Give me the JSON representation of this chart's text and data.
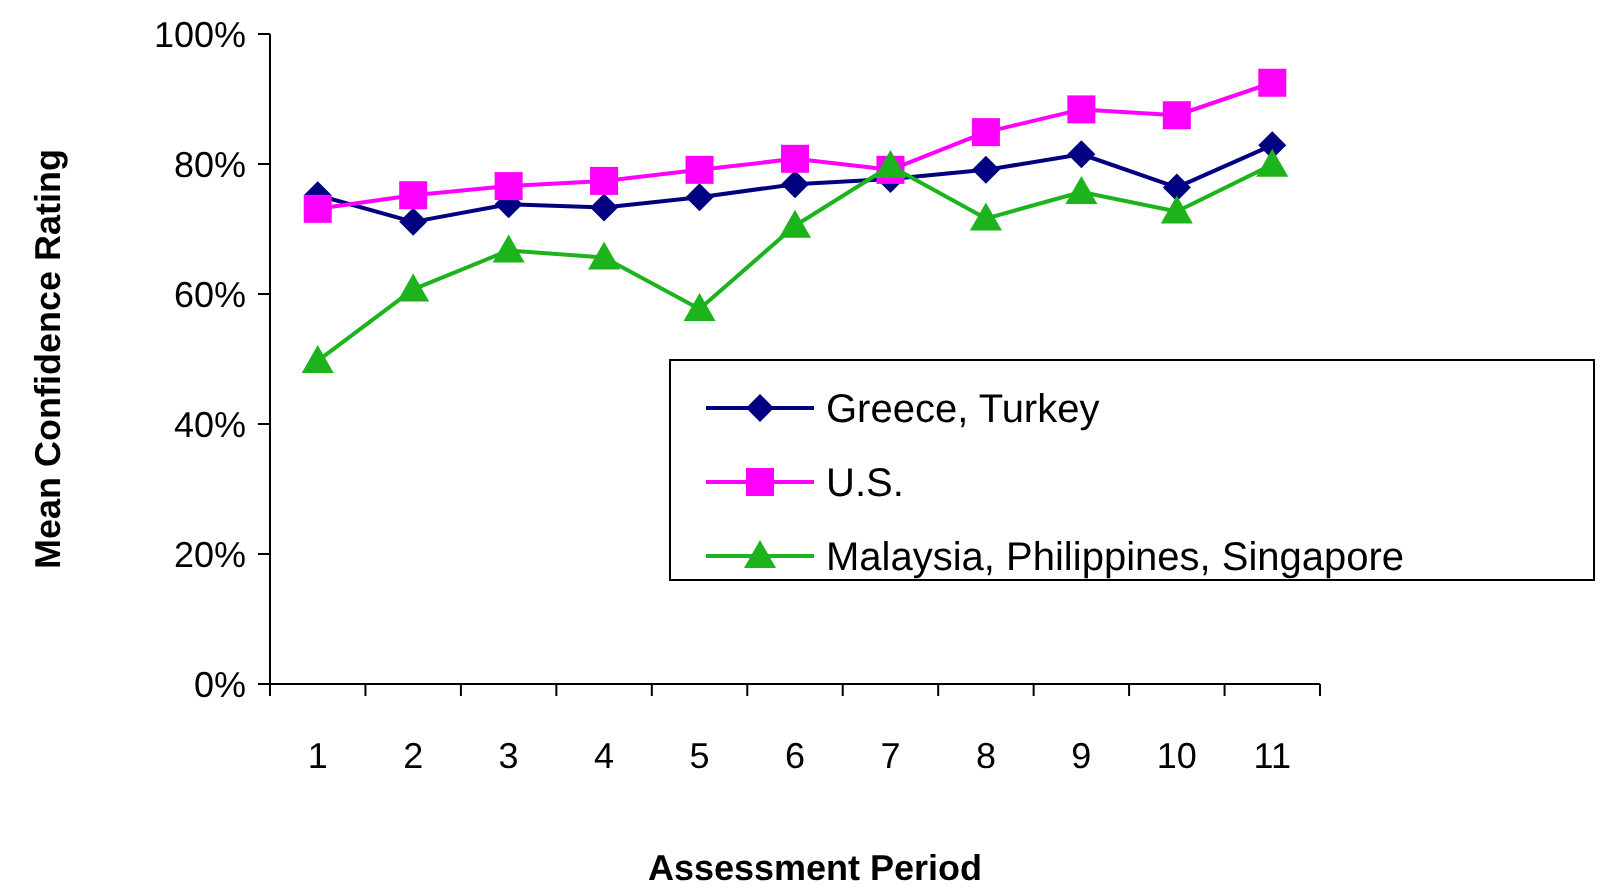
{
  "chart_data": {
    "type": "line",
    "xlabel": "Assessment Period",
    "ylabel": "Mean Confidence Rating",
    "categories": [
      "1",
      "2",
      "3",
      "4",
      "5",
      "6",
      "7",
      "8",
      "9",
      "10",
      "11"
    ],
    "ylim": [
      0,
      100
    ],
    "yticks": [
      {
        "value": 0,
        "label": "0%"
      },
      {
        "value": 20,
        "label": "20%"
      },
      {
        "value": 40,
        "label": "40%"
      },
      {
        "value": 60,
        "label": "60%"
      },
      {
        "value": 80,
        "label": "80%"
      },
      {
        "value": 100,
        "label": "100%"
      }
    ],
    "grid": false,
    "legend": "bottom right",
    "line_style": "solid",
    "series": [
      {
        "name": "Greece, Turkey",
        "color": "#000080",
        "marker": "diamond",
        "values": [
          75.2,
          71.1,
          73.8,
          73.3,
          74.9,
          76.9,
          77.7,
          79.1,
          81.5,
          76.4,
          82.9
        ]
      },
      {
        "name": "U.S.",
        "color": "#ff00ff",
        "marker": "square",
        "values": [
          73.1,
          75.2,
          76.6,
          77.4,
          79.1,
          80.8,
          79.1,
          84.9,
          88.4,
          87.5,
          92.5
        ]
      },
      {
        "name": "Malaysia, Philippines, Singapore",
        "color": "#1db31d",
        "marker": "triangle",
        "values": [
          49.7,
          60.7,
          66.7,
          65.6,
          57.7,
          70.5,
          79.7,
          71.6,
          75.7,
          72.7,
          79.9
        ]
      }
    ]
  }
}
